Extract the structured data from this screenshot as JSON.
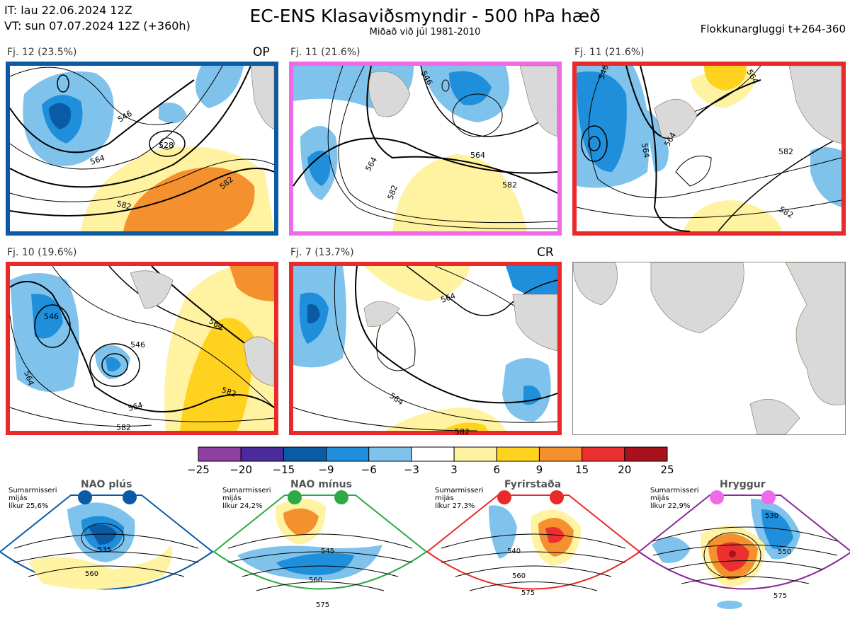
{
  "header": {
    "it_line": "IT: lau 22.06.2024 12Z",
    "vt_line": "VT: sun 07.07.2024 12Z  (+360h)",
    "title": "EC-ENS Klasaviðsmyndir - 500 hPa hæð",
    "subtitle": "Miðað við júl 1981-2010",
    "window": "Flokkunargluggi t+264-360"
  },
  "clusters": [
    {
      "label": "Fj. 12 (23.5%)",
      "tag": "OP",
      "border": "#0b5aa6",
      "contours": [
        "546",
        "528",
        "564",
        "582",
        "582"
      ]
    },
    {
      "label": "Fj. 11 (21.6%)",
      "tag": "",
      "border": "#ef6ae8",
      "contours": [
        "564",
        "546",
        "564",
        "582",
        "582"
      ]
    },
    {
      "label": "Fj. 11 (21.6%)",
      "tag": "",
      "border": "#e92a2a",
      "contours": [
        "546",
        "564",
        "564",
        "564",
        "582",
        "582"
      ]
    },
    {
      "label": "Fj. 10 (19.6%)",
      "tag": "",
      "border": "#e92a2a",
      "contours": [
        "546",
        "564",
        "546",
        "564",
        "582",
        "564",
        "582"
      ]
    },
    {
      "label": "Fj. 7 (13.7%)",
      "tag": "CR",
      "border": "#e92a2a",
      "contours": [
        "564",
        "564",
        "582"
      ]
    }
  ],
  "colorbar": {
    "ticks": [
      "−25",
      "−20",
      "−15",
      "−9",
      "−6",
      "−3",
      "3",
      "6",
      "9",
      "15",
      "20",
      "25"
    ],
    "colors": [
      "#8e3fa0",
      "#4a2a9c",
      "#0b5aa6",
      "#1f8fdc",
      "#7fc2ec",
      "#ffffff",
      "#fff2a0",
      "#ffd21f",
      "#f5902e",
      "#ec3030",
      "#a8121c"
    ]
  },
  "regimes": [
    {
      "title": "NAO plús",
      "note": [
        "Sumarmisseri",
        "mijás",
        "líkur 25,6%"
      ],
      "color": "#0b5aa6",
      "dot": "#0b5aa6",
      "contours": [
        "535",
        "560"
      ]
    },
    {
      "title": "NAO mínus",
      "note": [
        "Sumarmisseri",
        "mijás",
        "líkur 24,2%"
      ],
      "color": "#2eaa44",
      "dot": "#2eaa44",
      "contours": [
        "545",
        "560",
        "575"
      ]
    },
    {
      "title": "Fyrirstaða",
      "note": [
        "Sumarmisseri",
        "mijás",
        "líkur 27,3%"
      ],
      "color": "#e92a2a",
      "dot": "#e92a2a",
      "contours": [
        "540",
        "560",
        "575"
      ]
    },
    {
      "title": "Hryggur",
      "note": [
        "Sumarmisseri",
        "mijás",
        "líkur 22,9%"
      ],
      "color": "#8a2a9a",
      "dot": "#ef6ae8",
      "contours": [
        "530",
        "550",
        "575"
      ]
    }
  ]
}
